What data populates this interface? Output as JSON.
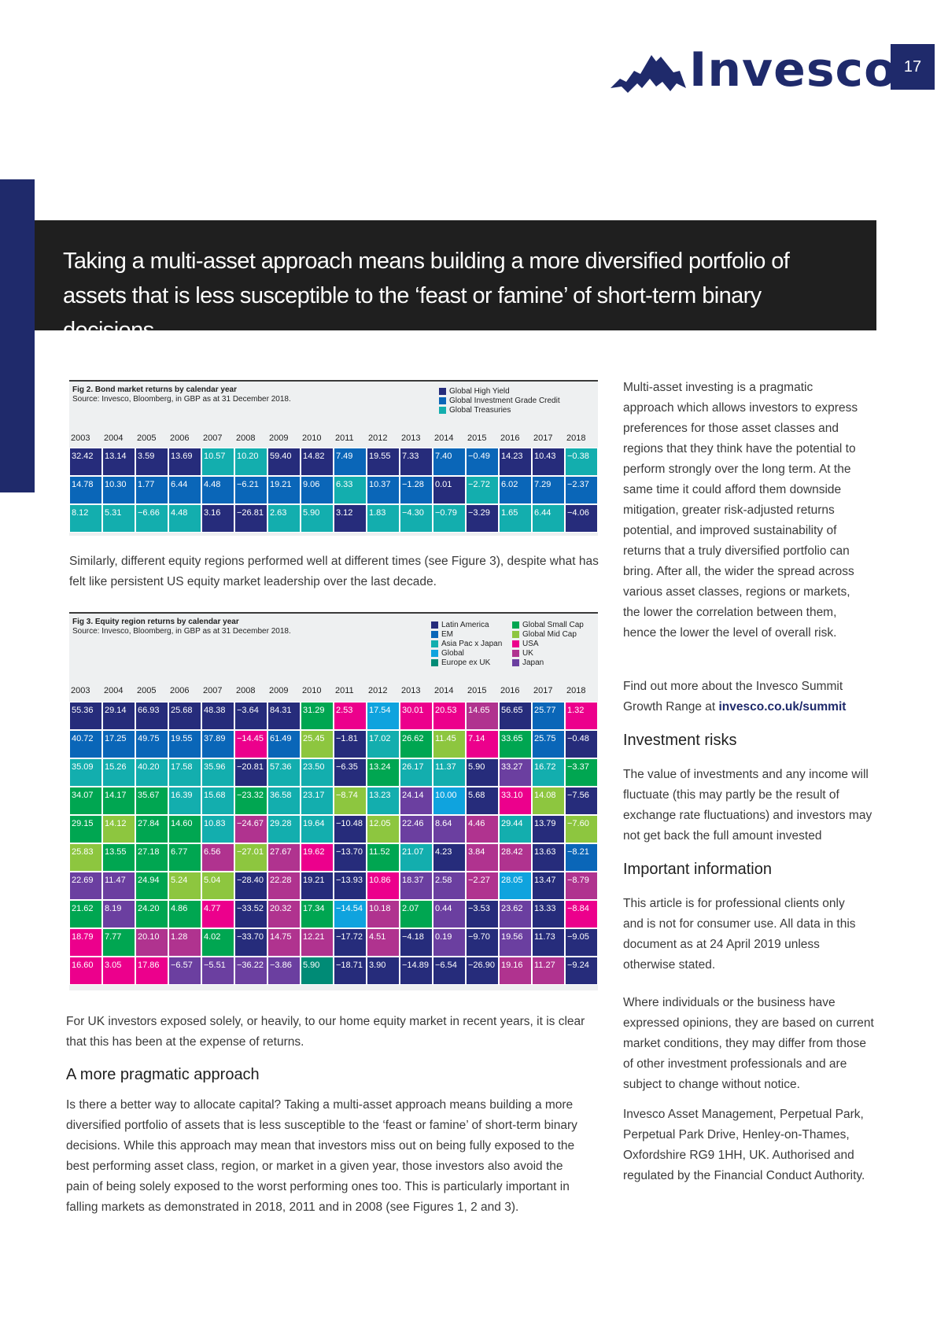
{
  "header": {
    "logo_text": "Invesco",
    "page_number": "17"
  },
  "banner": {
    "text": "Taking a multi-asset approach means building a more diversified portfolio of assets that is less susceptible to the ‘feast or famine’ of short-term binary decisions."
  },
  "fig2": {
    "title": "Fig 2. Bond market returns by calendar year",
    "source": "Source: Invesco, Bloomberg, in GBP as at 31 December 2018.",
    "legend": [
      {
        "label": "Global High Yield",
        "color": "#262c7b"
      },
      {
        "label": "Global Investment Grade Credit",
        "color": "#0a66b8"
      },
      {
        "label": "Global Treasuries",
        "color": "#13aeae"
      }
    ],
    "years": [
      "2003",
      "2004",
      "2005",
      "2006",
      "2007",
      "2008",
      "2009",
      "2010",
      "2011",
      "2012",
      "2013",
      "2014",
      "2015",
      "2016",
      "2017",
      "2018"
    ],
    "rows": [
      [
        "32.42",
        "13.14",
        "3.59",
        "13.69",
        "10.57",
        "10.20",
        "59.40",
        "14.82",
        "7.49",
        "19.55",
        "7.33",
        "7.40",
        "−0.49",
        "14.23",
        "10.43",
        "−0.38"
      ],
      [
        "14.78",
        "10.30",
        "1.77",
        "6.44",
        "4.48",
        "−6.21",
        "19.21",
        "9.06",
        "6.33",
        "10.37",
        "−1.28",
        "0.01",
        "−2.72",
        "6.02",
        "7.29",
        "−2.37"
      ],
      [
        "8.12",
        "5.31",
        "−6.66",
        "4.48",
        "3.16",
        "−26.81",
        "2.63",
        "5.90",
        "3.12",
        "1.83",
        "−4.30",
        "−0.79",
        "−3.29",
        "1.65",
        "6.44",
        "−4.06"
      ]
    ],
    "colors": [
      [
        "#262c7b",
        "#262c7b",
        "#262c7b",
        "#262c7b",
        "#13aeae",
        "#13aeae",
        "#262c7b",
        "#262c7b",
        "#0a66b8",
        "#262c7b",
        "#262c7b",
        "#0a66b8",
        "#0a66b8",
        "#262c7b",
        "#262c7b",
        "#13aeae"
      ],
      [
        "#0a66b8",
        "#0a66b8",
        "#0a66b8",
        "#0a66b8",
        "#0a66b8",
        "#0a66b8",
        "#0a66b8",
        "#0a66b8",
        "#13aeae",
        "#0a66b8",
        "#0a66b8",
        "#262c7b",
        "#13aeae",
        "#0a66b8",
        "#0a66b8",
        "#0a66b8"
      ],
      [
        "#13aeae",
        "#13aeae",
        "#13aeae",
        "#13aeae",
        "#262c7b",
        "#262c7b",
        "#13aeae",
        "#13aeae",
        "#262c7b",
        "#13aeae",
        "#13aeae",
        "#13aeae",
        "#262c7b",
        "#13aeae",
        "#13aeae",
        "#262c7b"
      ]
    ]
  },
  "para1": "Similarly, different equity regions performed well at different times (see Figure 3), despite what has felt like persistent US equity market leadership over the last decade.",
  "fig3": {
    "title": "Fig 3. Equity region returns by calendar year",
    "source": "Source: Invesco, Bloomberg, in GBP as at 31 December 2018.",
    "legend_left": [
      {
        "label": "Latin America",
        "color": "#262c7b"
      },
      {
        "label": "EM",
        "color": "#0a66b8"
      },
      {
        "label": "Asia Pac x Japan",
        "color": "#13aeae"
      },
      {
        "label": "Global",
        "color": "#0fa3de"
      },
      {
        "label": "Europe ex UK",
        "color": "#008b76"
      }
    ],
    "legend_right": [
      {
        "label": "Global Small Cap",
        "color": "#00a651"
      },
      {
        "label": "Global Mid Cap",
        "color": "#8dc63f"
      },
      {
        "label": "USA",
        "color": "#ec008c"
      },
      {
        "label": "UK",
        "color": "#b0338f"
      },
      {
        "label": "Japan",
        "color": "#6b3fa0"
      }
    ],
    "years": [
      "2003",
      "2004",
      "2005",
      "2006",
      "2007",
      "2008",
      "2009",
      "2010",
      "2011",
      "2012",
      "2013",
      "2014",
      "2015",
      "2016",
      "2017",
      "2018"
    ],
    "rows": [
      [
        "55.36",
        "29.14",
        "66.93",
        "25.68",
        "48.38",
        "−3.64",
        "84.31",
        "31.29",
        "2.53",
        "17.54",
        "30.01",
        "20.53",
        "14.65",
        "56.65",
        "25.77",
        "1.32"
      ],
      [
        "40.72",
        "17.25",
        "49.75",
        "19.55",
        "37.89",
        "−14.45",
        "61.49",
        "25.45",
        "−1.81",
        "17.02",
        "26.62",
        "11.45",
        "7.14",
        "33.65",
        "25.75",
        "−0.48"
      ],
      [
        "35.09",
        "15.26",
        "40.20",
        "17.58",
        "35.96",
        "−20.81",
        "57.36",
        "23.50",
        "−6.35",
        "13.24",
        "26.17",
        "11.37",
        "5.90",
        "33.27",
        "16.72",
        "−3.37"
      ],
      [
        "34.07",
        "14.17",
        "35.67",
        "16.39",
        "15.68",
        "−23.32",
        "36.58",
        "23.17",
        "−8.74",
        "13.23",
        "24.14",
        "10.00",
        "5.68",
        "33.10",
        "14.08",
        "−7.56"
      ],
      [
        "29.15",
        "14.12",
        "27.84",
        "14.60",
        "10.83",
        "−24.67",
        "29.28",
        "19.64",
        "−10.48",
        "12.05",
        "22.46",
        "8.64",
        "4.46",
        "29.44",
        "13.79",
        "−7.60"
      ],
      [
        "25.83",
        "13.55",
        "27.18",
        "6.77",
        "6.56",
        "−27.01",
        "27.67",
        "19.62",
        "−13.70",
        "11.52",
        "21.07",
        "4.23",
        "3.84",
        "28.42",
        "13.63",
        "−8.21"
      ],
      [
        "22.69",
        "11.47",
        "24.94",
        "5.24",
        "5.04",
        "−28.40",
        "22.28",
        "19.21",
        "−13.93",
        "10.86",
        "18.37",
        "2.58",
        "−2.27",
        "28.05",
        "13.47",
        "−8.79"
      ],
      [
        "21.62",
        "8.19",
        "24.20",
        "4.86",
        "4.77",
        "−33.52",
        "20.32",
        "17.34",
        "−14.54",
        "10.18",
        "2.07",
        "0.44",
        "−3.53",
        "23.62",
        "13.33",
        "−8.84"
      ],
      [
        "18.79",
        "7.77",
        "20.10",
        "1.28",
        "4.02",
        "−33.70",
        "14.75",
        "12.21",
        "−17.72",
        "4.51",
        "−4.18",
        "0.19",
        "−9.70",
        "19.56",
        "11.73",
        "−9.05"
      ],
      [
        "16.60",
        "3.05",
        "17.86",
        "−6.57",
        "−5.51",
        "−36.22",
        "−3.86",
        "5.90",
        "−18.71",
        "3.90",
        "−14.89",
        "−6.54",
        "−26.90",
        "19.16",
        "11.27",
        "−9.24"
      ]
    ],
    "colors": [
      [
        "#262c7b",
        "#262c7b",
        "#262c7b",
        "#262c7b",
        "#262c7b",
        "#262c7b",
        "#262c7b",
        "#00a651",
        "#ec008c",
        "#0fa3de",
        "#ec008c",
        "#ec008c",
        "#b0338f",
        "#262c7b",
        "#0a66b8",
        "#ec008c"
      ],
      [
        "#0a66b8",
        "#0a66b8",
        "#0a66b8",
        "#0a66b8",
        "#0a66b8",
        "#ec008c",
        "#0a66b8",
        "#8dc63f",
        "#262c7b",
        "#13aeae",
        "#00a651",
        "#8dc63f",
        "#ec008c",
        "#00a651",
        "#0a66b8",
        "#262c7b"
      ],
      [
        "#13aeae",
        "#13aeae",
        "#13aeae",
        "#13aeae",
        "#13aeae",
        "#262c7b",
        "#13aeae",
        "#13aeae",
        "#262c7b",
        "#00a651",
        "#13aeae",
        "#13aeae",
        "#262c7b",
        "#6b3fa0",
        "#13aeae",
        "#00a651"
      ],
      [
        "#00a651",
        "#00a651",
        "#00a651",
        "#13aeae",
        "#13aeae",
        "#00a651",
        "#13aeae",
        "#13aeae",
        "#8dc63f",
        "#13aeae",
        "#6b3fa0",
        "#0fa3de",
        "#262c7b",
        "#ec008c",
        "#8dc63f",
        "#262c7b"
      ],
      [
        "#00a651",
        "#8dc63f",
        "#00a651",
        "#00a651",
        "#13aeae",
        "#b0338f",
        "#13aeae",
        "#13aeae",
        "#262c7b",
        "#8dc63f",
        "#6b3fa0",
        "#6b3fa0",
        "#b0338f",
        "#13aeae",
        "#262c7b",
        "#8dc63f"
      ],
      [
        "#8dc63f",
        "#00a651",
        "#00a651",
        "#00a651",
        "#b0338f",
        "#8dc63f",
        "#b0338f",
        "#ec008c",
        "#262c7b",
        "#00a651",
        "#13aeae",
        "#262c7b",
        "#b0338f",
        "#b0338f",
        "#262c7b",
        "#0a66b8"
      ],
      [
        "#6b3fa0",
        "#6b3fa0",
        "#00a651",
        "#8dc63f",
        "#8dc63f",
        "#262c7b",
        "#b0338f",
        "#262c7b",
        "#262c7b",
        "#ec008c",
        "#6b3fa0",
        "#6b3fa0",
        "#b0338f",
        "#0fa3de",
        "#262c7b",
        "#b0338f"
      ],
      [
        "#00a651",
        "#6b3fa0",
        "#00a651",
        "#00a651",
        "#ec008c",
        "#262c7b",
        "#b0338f",
        "#00a651",
        "#0fa3de",
        "#b0338f",
        "#00a651",
        "#6b3fa0",
        "#262c7b",
        "#6b3fa0",
        "#262c7b",
        "#ec008c"
      ],
      [
        "#ec008c",
        "#00a651",
        "#b0338f",
        "#b0338f",
        "#00a651",
        "#262c7b",
        "#b0338f",
        "#b0338f",
        "#262c7b",
        "#b0338f",
        "#262c7b",
        "#6b3fa0",
        "#262c7b",
        "#6b3fa0",
        "#262c7b",
        "#262c7b"
      ],
      [
        "#ec008c",
        "#ec008c",
        "#ec008c",
        "#6b3fa0",
        "#6b3fa0",
        "#6b3fa0",
        "#6b3fa0",
        "#008b76",
        "#262c7b",
        "#262c7b",
        "#262c7b",
        "#262c7b",
        "#262c7b",
        "#b0338f",
        "#b0338f",
        "#262c7b"
      ]
    ]
  },
  "para2": "For UK investors exposed solely, or heavily, to our home equity market in recent years, it is clear that this has been at the expense of returns.",
  "heading_pragmatic": "A more pragmatic approach",
  "para3": "Is there a better way to allocate capital? Taking a multi-asset approach means building a more diversified portfolio of assets that is less susceptible to the ‘feast or famine’ of short-term binary decisions.  While this approach may mean that investors miss out on being fully exposed to the best performing asset class, region, or market in a given year, those investors also avoid the pain of being solely exposed to the worst performing ones too. This is particularly important in falling markets as demonstrated in 2018, 2011 and in 2008 (see Figures 1, 2 and 3).",
  "sidebar": {
    "intro": "Multi-asset investing is a pragmatic approach which allows investors to express preferences for those asset classes and regions that they think have the potential to perform strongly over the long term. At the same time it could afford them downside mitigation, greater risk-adjusted returns potential, and improved sustainability of returns that a truly diversified portfolio can bring. After all, the wider the spread across various asset classes, regions or markets, the lower the correlation between them, hence the lower the level of overall risk.",
    "find_more": "Find out more about the Invesco Summit Growth Range at ",
    "link": "invesco.co.uk/summit",
    "risks_heading": "Investment risks",
    "risks_text": "The value of investments and any income will fluctuate (this may partly be the result of exchange rate fluctuations) and investors may not get back the full amount invested",
    "info_heading": "Important information",
    "info_text1": "This article is for professional clients only and is not for consumer use. All data in this document as at 24 April 2019 unless otherwise stated.",
    "info_text2": "Where individuals or the business have expressed opinions, they are based on current market conditions, they may differ from those of other investment professionals and are subject to change without notice.",
    "info_text3": "Invesco Asset Management, Perpetual Park, Perpetual Park Drive, Henley-on-Thames, Oxfordshire RG9 1HH, UK. Authorised and regulated by the Financial Conduct Authority."
  }
}
